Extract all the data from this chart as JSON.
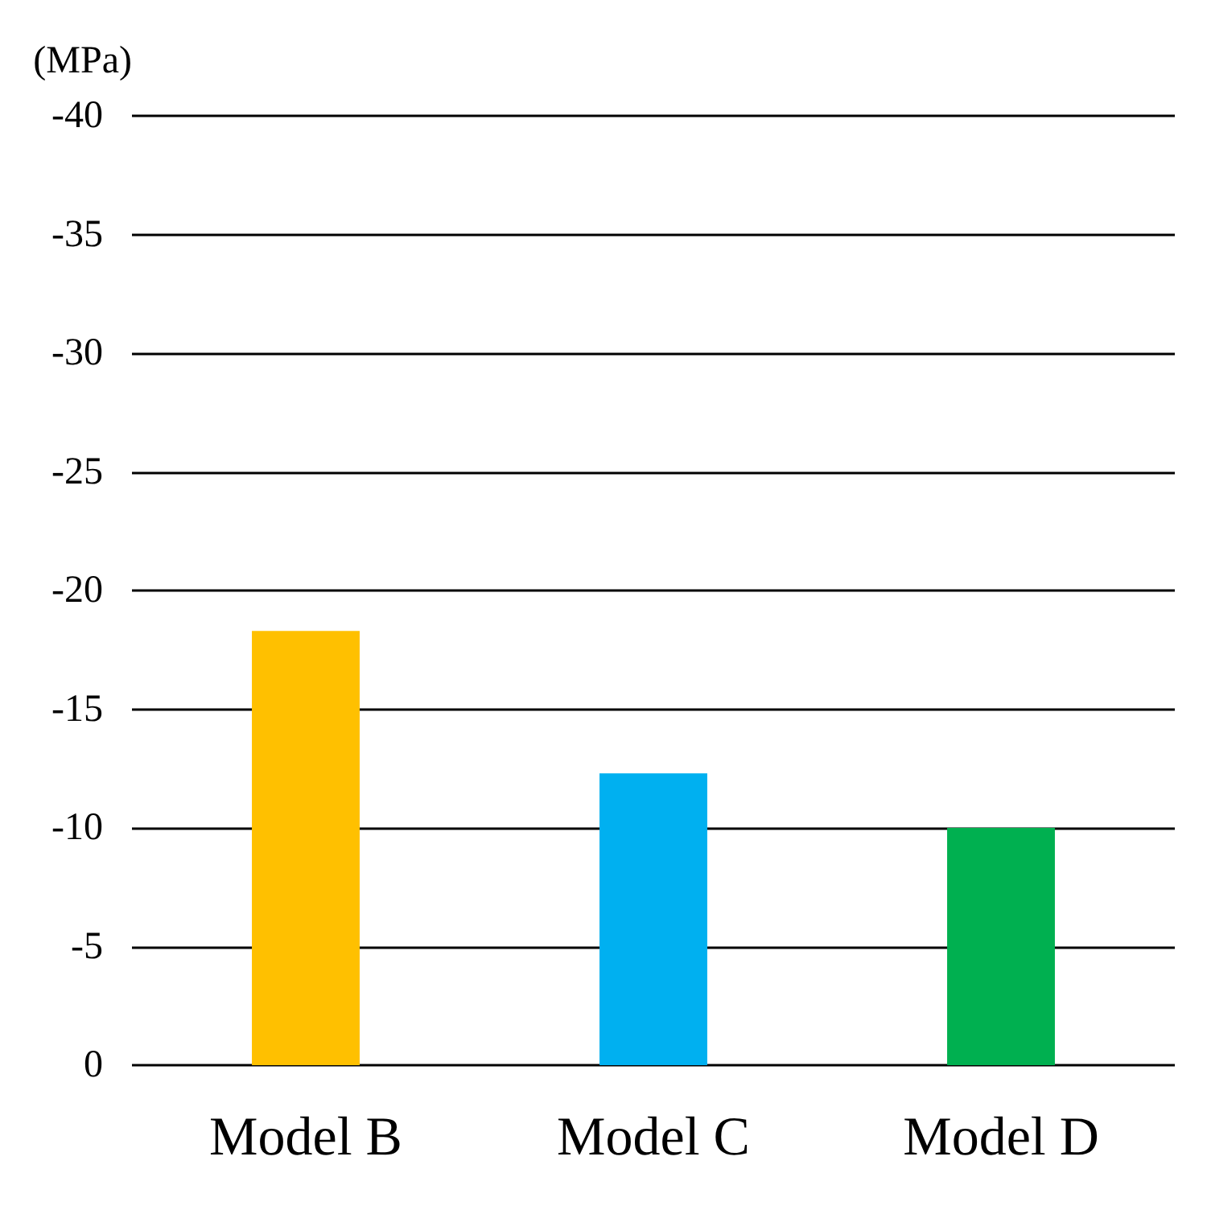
{
  "chart_data": {
    "type": "bar",
    "ylabel": "(MPa)",
    "categories": [
      "Model B",
      "Model C",
      "Model D"
    ],
    "values": [
      -18.3,
      -12.3,
      -10
    ],
    "colors": [
      "#ffc000",
      "#00b0f0",
      "#00b050"
    ],
    "ylim": [
      0,
      -40
    ],
    "yticks": [
      0,
      -5,
      -10,
      -15,
      -20,
      -25,
      -30,
      -35,
      -40
    ],
    "grid": "y"
  }
}
